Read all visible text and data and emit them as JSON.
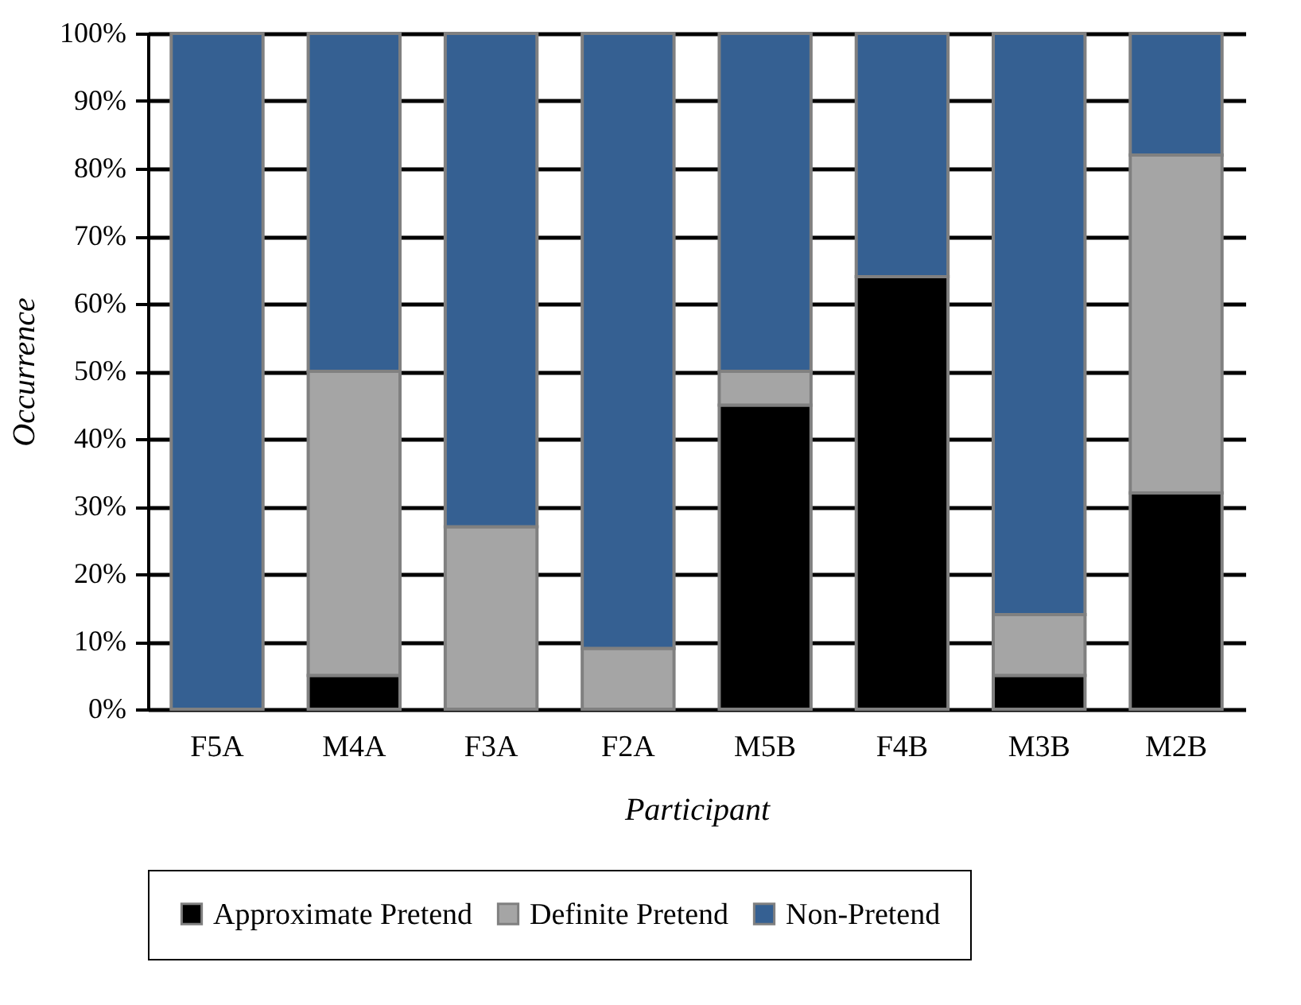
{
  "chart_data": {
    "type": "bar",
    "stacked": true,
    "xlabel": "Participant",
    "ylabel": "Occurrence",
    "categories": [
      "F5A",
      "M4A",
      "F3A",
      "F2A",
      "M5B",
      "F4B",
      "M3B",
      "M2B"
    ],
    "series": [
      {
        "name": "Approximate Pretend",
        "color": "#000000",
        "values": [
          0,
          5,
          0,
          0,
          45,
          64,
          5,
          32
        ]
      },
      {
        "name": "Definite Pretend",
        "color": "#a5a5a5",
        "values": [
          0,
          45,
          27,
          9,
          5,
          0,
          9,
          50
        ]
      },
      {
        "name": "Non-Pretend",
        "color": "#356092",
        "values": [
          100,
          50,
          73,
          91,
          50,
          36,
          86,
          18
        ]
      }
    ],
    "ylim": [
      0,
      100
    ],
    "yticks": [
      {
        "value": 0,
        "label": "0%"
      },
      {
        "value": 10,
        "label": "10%"
      },
      {
        "value": 20,
        "label": "20%"
      },
      {
        "value": 30,
        "label": "30%"
      },
      {
        "value": 40,
        "label": "40%"
      },
      {
        "value": 50,
        "label": "50%"
      },
      {
        "value": 60,
        "label": "60%"
      },
      {
        "value": 70,
        "label": "70%"
      },
      {
        "value": 80,
        "label": "80%"
      },
      {
        "value": 90,
        "label": "90%"
      },
      {
        "value": 100,
        "label": "100%"
      }
    ],
    "grid": "y",
    "legend": "bottom"
  }
}
